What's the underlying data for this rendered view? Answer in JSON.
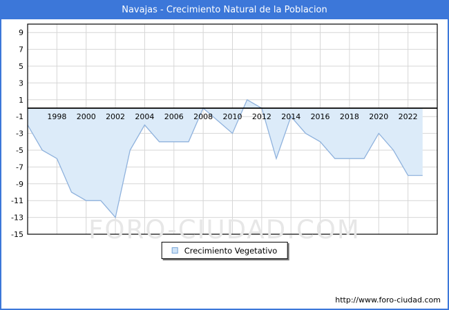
{
  "window": {
    "title": "Navajas - Crecimiento Natural de la Poblacion"
  },
  "legend": {
    "label": "Crecimiento Vegetativo"
  },
  "watermark": {
    "text": "FORO-CIUDAD.COM"
  },
  "footer": {
    "url": "http://www.foro-ciudad.com"
  },
  "colors": {
    "titlebar_bg": "#3c77d9",
    "titlebar_text": "#ffffff",
    "frame_border": "#3c77d9",
    "grid": "#d6d6d6",
    "plot_border": "#000000",
    "zero_axis": "#000000",
    "tick_text": "#000000",
    "watermark_text": "#e7e7e7",
    "line": "#8fb2dd",
    "fill": "#dcebf9",
    "legend_swatch_fill": "#cfe3f7",
    "legend_swatch_border": "#7aa6d8"
  },
  "chart_data": {
    "type": "area",
    "title": "Navajas - Crecimiento Natural de la Poblacion",
    "legend_entries": [
      "Crecimiento Vegetativo"
    ],
    "legend_position": "bottom-center",
    "grid": true,
    "baseline": 0,
    "x_axis": {
      "range": [
        1996,
        2024
      ],
      "gridline_years": [
        1998,
        2000,
        2002,
        2004,
        2006,
        2008,
        2010,
        2012,
        2014,
        2016,
        2018,
        2020,
        2022
      ],
      "tick_labels": [
        "1998",
        "2000",
        "2002",
        "2004",
        "2006",
        "2008",
        "2010",
        "2012",
        "2014",
        "2016",
        "2018",
        "2020",
        "2022"
      ]
    },
    "y_axis": {
      "range": [
        -15,
        10
      ],
      "ticks": [
        9,
        7,
        5,
        3,
        1,
        -1,
        -3,
        -5,
        -7,
        -9,
        -11,
        -13,
        -15
      ]
    },
    "series": [
      {
        "name": "Crecimiento Vegetativo",
        "x": [
          1996,
          1997,
          1998,
          1999,
          2000,
          2001,
          2002,
          2003,
          2004,
          2005,
          2006,
          2007,
          2008,
          2009,
          2010,
          2011,
          2012,
          2013,
          2014,
          2015,
          2016,
          2017,
          2018,
          2019,
          2020,
          2021,
          2022,
          2023
        ],
        "values": [
          -2,
          -5,
          -6,
          -10,
          -11,
          -11,
          -13,
          -5,
          -2,
          -4,
          -4,
          -4,
          0,
          -1.5,
          -3,
          1,
          0,
          -6,
          -1,
          -3,
          -4,
          -6,
          -6,
          -6,
          -3,
          -5,
          -8,
          -8
        ]
      }
    ]
  }
}
